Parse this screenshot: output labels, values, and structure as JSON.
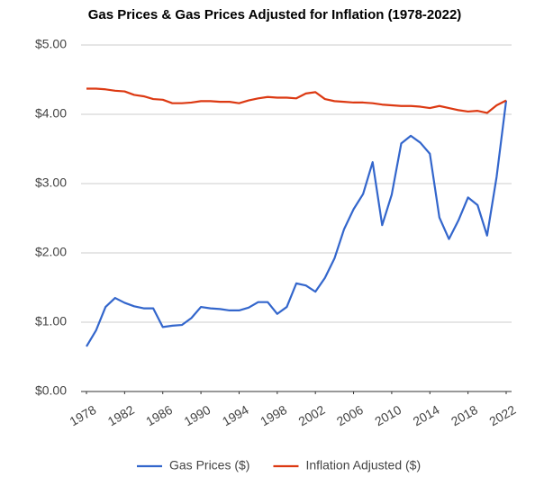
{
  "chart_data": {
    "type": "line",
    "title": "Gas Prices & Gas Prices Adjusted for Inflation (1978-2022)",
    "x": [
      1978,
      1979,
      1980,
      1981,
      1982,
      1983,
      1984,
      1985,
      1986,
      1987,
      1988,
      1989,
      1990,
      1991,
      1992,
      1993,
      1994,
      1995,
      1996,
      1997,
      1998,
      1999,
      2000,
      2001,
      2002,
      2003,
      2004,
      2005,
      2006,
      2007,
      2008,
      2009,
      2010,
      2011,
      2012,
      2013,
      2014,
      2015,
      2016,
      2017,
      2018,
      2019,
      2020,
      2021,
      2022
    ],
    "series": [
      {
        "name": "Gas Prices ($)",
        "color": "#3366cc",
        "values": [
          0.65,
          0.88,
          1.22,
          1.35,
          1.28,
          1.23,
          1.2,
          1.2,
          0.93,
          0.95,
          0.96,
          1.06,
          1.22,
          1.2,
          1.19,
          1.17,
          1.17,
          1.21,
          1.29,
          1.29,
          1.12,
          1.22,
          1.56,
          1.53,
          1.44,
          1.64,
          1.92,
          2.34,
          2.63,
          2.85,
          3.31,
          2.4,
          2.84,
          3.58,
          3.69,
          3.59,
          3.43,
          2.51,
          2.2,
          2.47,
          2.8,
          2.69,
          2.25,
          3.1,
          4.2
        ]
      },
      {
        "name": "Inflation Adjusted ($)",
        "color": "#dc3912",
        "values": [
          4.37,
          4.37,
          4.36,
          4.34,
          4.33,
          4.28,
          4.26,
          4.22,
          4.21,
          4.16,
          4.16,
          4.17,
          4.19,
          4.19,
          4.18,
          4.18,
          4.16,
          4.2,
          4.23,
          4.25,
          4.24,
          4.24,
          4.23,
          4.3,
          4.32,
          4.22,
          4.19,
          4.18,
          4.17,
          4.17,
          4.16,
          4.14,
          4.13,
          4.12,
          4.12,
          4.11,
          4.09,
          4.12,
          4.09,
          4.06,
          4.04,
          4.05,
          4.02,
          4.13,
          4.2
        ]
      }
    ],
    "xlim": [
      1978,
      2022
    ],
    "xticks": [
      1978,
      1982,
      1986,
      1990,
      1994,
      1998,
      2002,
      2006,
      2010,
      2014,
      2018,
      2022
    ],
    "ylim": [
      0,
      5
    ],
    "yticks": [
      {
        "value": 0,
        "label": "$0.00"
      },
      {
        "value": 1,
        "label": "$1.00"
      },
      {
        "value": 2,
        "label": "$2.00"
      },
      {
        "value": 3,
        "label": "$3.00"
      },
      {
        "value": 4,
        "label": "$4.00"
      },
      {
        "value": 5,
        "label": "$5.00"
      }
    ],
    "grid": true,
    "legend": "bottom"
  }
}
